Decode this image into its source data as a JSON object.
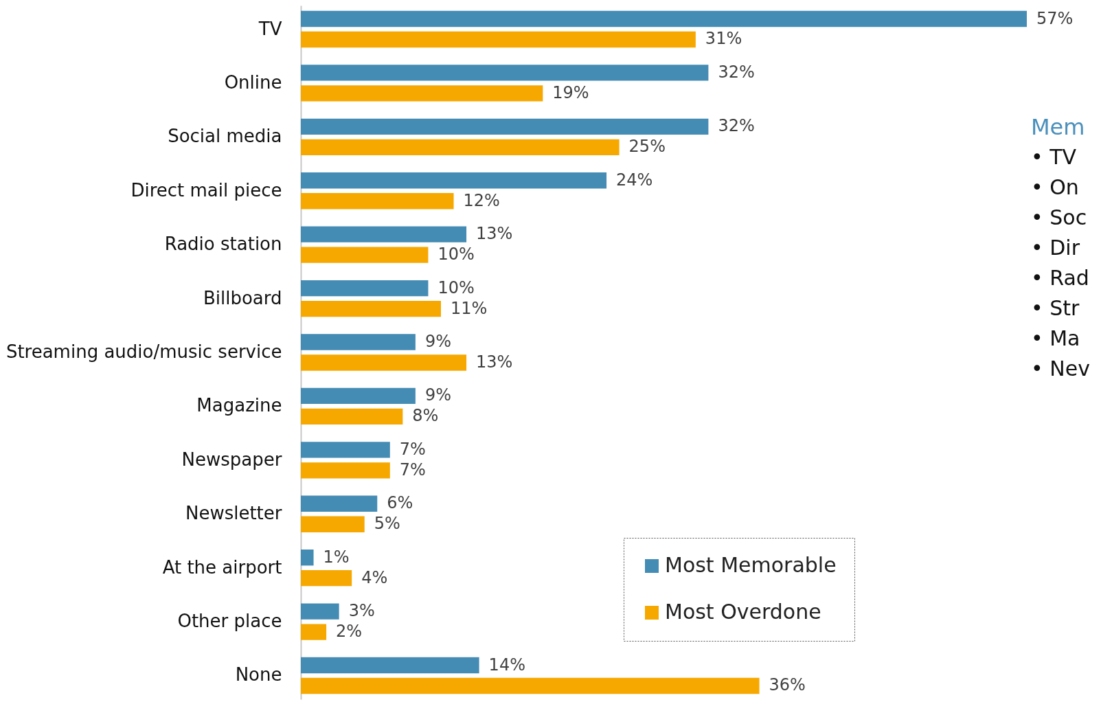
{
  "chart_data": {
    "type": "bar",
    "orientation": "horizontal",
    "legend": "bottom right",
    "grid": false,
    "categories": [
      "TV",
      "Online",
      "Social media",
      "Direct mail piece",
      "Radio station",
      "Billboard",
      "Streaming audio/music service",
      "Magazine",
      "Newspaper",
      "Newsletter",
      "At the airport",
      "Other place",
      "None"
    ],
    "series": [
      {
        "name": "Most Memorable",
        "color": "#458cb4",
        "values": [
          57,
          32,
          32,
          24,
          13,
          10,
          9,
          9,
          7,
          6,
          1,
          3,
          14
        ],
        "value_labels": [
          "57%",
          "32%",
          "32%",
          "24%",
          "13%",
          "10%",
          "9%",
          "9%",
          "7%",
          "6%",
          "1%",
          "3%",
          "14%"
        ]
      },
      {
        "name": "Most Overdone",
        "color": "#f6a800",
        "values": [
          31,
          19,
          25,
          12,
          10,
          11,
          13,
          8,
          7,
          5,
          4,
          2,
          36
        ],
        "value_labels": [
          "31%",
          "19%",
          "25%",
          "12%",
          "10%",
          "11%",
          "13%",
          "8%",
          "7%",
          "5%",
          "4%",
          "2%",
          "36%"
        ]
      }
    ],
    "annotations": [
      "Mem",
      "• TV",
      "• On",
      "• Soc",
      "• Dir",
      "• Rad",
      "• Str",
      "• Ma",
      "• Nev"
    ]
  }
}
